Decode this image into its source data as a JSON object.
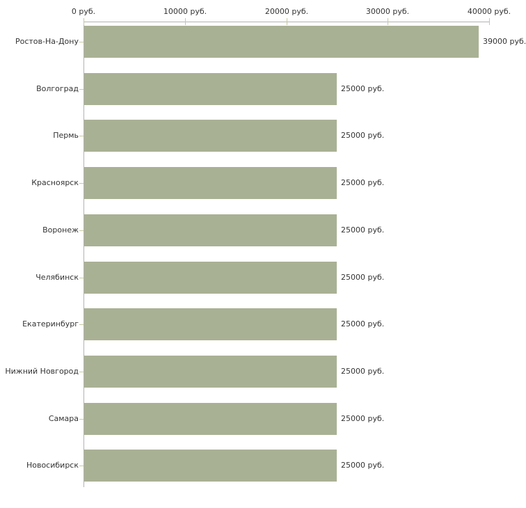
{
  "chart_data": {
    "type": "bar",
    "orientation": "horizontal",
    "categories": [
      "Ростов-На-Дону",
      "Волгоград",
      "Пермь",
      "Красноярск",
      "Воронеж",
      "Челябинск",
      "Екатеринбург",
      "Нижний Новгород",
      "Самара",
      "Новосибирск"
    ],
    "values": [
      39000,
      25000,
      25000,
      25000,
      25000,
      25000,
      25000,
      25000,
      25000,
      25000
    ],
    "value_labels": [
      "39000 руб.",
      "25000 руб.",
      "25000 руб.",
      "25000 руб.",
      "25000 руб.",
      "25000 руб.",
      "25000 руб.",
      "25000 руб.",
      "25000 руб.",
      "25000 руб."
    ],
    "unit": "руб.",
    "x_axis": {
      "position": "top",
      "min": 0,
      "max": 40000,
      "tick_values": [
        0,
        10000,
        20000,
        30000,
        40000
      ],
      "tick_labels": [
        "0 руб.",
        "10000 руб.",
        "20000 руб.",
        "30000 руб.",
        "40000 руб."
      ]
    },
    "legend": "none",
    "grid": false,
    "colors": {
      "bar": "#a9b194",
      "axis_line": "#b3b3b3",
      "tick_mark": "#c9c9a3",
      "label_text": "#333333",
      "background": "#ffffff"
    }
  }
}
